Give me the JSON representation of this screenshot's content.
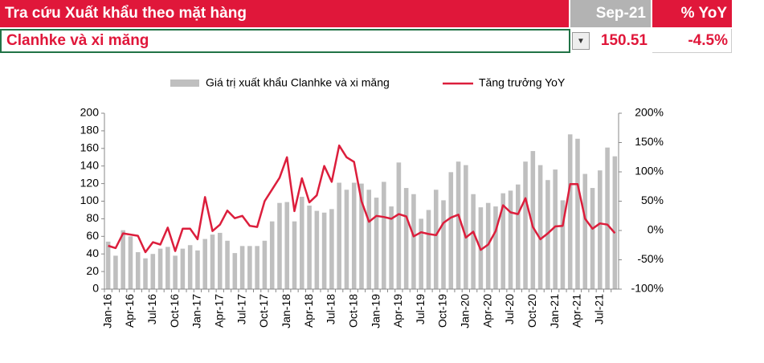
{
  "header": {
    "title": "Tra cứu Xuất khẩu theo mặt hàng",
    "period": "Sep-21",
    "yoy_label": "% YoY",
    "item": "Clanhke và xi măng",
    "value": "150.51",
    "yoy": "-4.5%"
  },
  "chart_data": {
    "type": "bar-line",
    "categories": [
      "Jan-16",
      null,
      null,
      "Apr-16",
      null,
      null,
      "Jul-16",
      null,
      null,
      "Oct-16",
      null,
      null,
      "Jan-17",
      null,
      null,
      "Apr-17",
      null,
      null,
      "Jul-17",
      null,
      null,
      "Oct-17",
      null,
      null,
      "Jan-18",
      null,
      null,
      "Apr-18",
      null,
      null,
      "Jul-18",
      null,
      null,
      "Oct-18",
      null,
      null,
      "Jan-19",
      null,
      null,
      "Apr-19",
      null,
      null,
      "Jul-19",
      null,
      null,
      "Oct-19",
      null,
      null,
      "Jan-20",
      null,
      null,
      "Apr-20",
      null,
      null,
      "Jul-20",
      null,
      null,
      "Oct-20",
      null,
      null,
      "Jan-21",
      null,
      null,
      "Apr-21",
      null,
      null,
      "Jul-21",
      null,
      null
    ],
    "series": [
      {
        "name": "Giá trị xuất khẩu Clanhke và xi măng",
        "color": "#bfbfbf",
        "type": "bar",
        "values": [
          54,
          38,
          67,
          60,
          42,
          35,
          40,
          46,
          48,
          38,
          46,
          50,
          44,
          57,
          62,
          64,
          55,
          41,
          49,
          49,
          49,
          55,
          77,
          98,
          99,
          77,
          105,
          95,
          89,
          87,
          91,
          121,
          113,
          121,
          120,
          113,
          104,
          122,
          94,
          144,
          115,
          108,
          80,
          90,
          113,
          101,
          133,
          145,
          141,
          108,
          93,
          98,
          94,
          109,
          112,
          119,
          145,
          157,
          141,
          124,
          136,
          101,
          176,
          171,
          131,
          115,
          135,
          161,
          151
        ]
      },
      {
        "name": "Tăng trưởng YoY",
        "color": "#dc1e3c",
        "type": "line",
        "axis": "y2",
        "values": [
          -26,
          -30,
          -5,
          -7,
          -9,
          -37,
          -20,
          -24,
          5,
          -35,
          3,
          3,
          -15,
          57,
          -1,
          10,
          34,
          21,
          25,
          8,
          6,
          50,
          70,
          90,
          125,
          33,
          89,
          48,
          60,
          110,
          83,
          145,
          125,
          117,
          50,
          15,
          25,
          23,
          20,
          28,
          24,
          -10,
          -3,
          -6,
          -8,
          13,
          22,
          27,
          -12,
          -2,
          -33,
          -24,
          -1,
          43,
          31,
          28,
          55,
          6,
          -15,
          -5,
          7,
          8,
          79,
          79,
          20,
          3,
          12,
          10,
          -4.5
        ]
      }
    ],
    "ylim": [
      0,
      200
    ],
    "yticks": [
      0,
      20,
      40,
      60,
      80,
      100,
      120,
      140,
      160,
      180,
      200
    ],
    "y2lim": [
      -100,
      200
    ],
    "y2ticks": [
      {
        "value": -100,
        "label": "-100%"
      },
      {
        "value": -50,
        "label": "-50%"
      },
      {
        "value": 0,
        "label": "0%"
      },
      {
        "value": 50,
        "label": "50%"
      },
      {
        "value": 100,
        "label": "100%"
      },
      {
        "value": 150,
        "label": "150%"
      },
      {
        "value": 200,
        "label": "200%"
      }
    ],
    "legend": "top"
  }
}
